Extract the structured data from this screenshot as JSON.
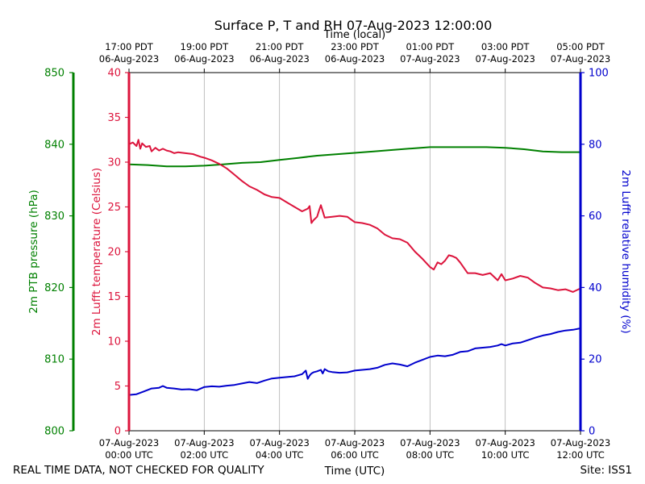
{
  "chart_data": {
    "type": "line",
    "title": "Surface P, T and RH 07-Aug-2023 12:00:00",
    "top_axis_label": "Time (local)",
    "xlabel": "Time (UTC)",
    "footer_left": "REAL TIME DATA, NOT CHECKED FOR QUALITY",
    "footer_right": "Site: ISS1",
    "x_range_hours": [
      0,
      12
    ],
    "x_ticks": [
      {
        "h": 0,
        "utc1": "07-Aug-2023",
        "utc2": "00:00 UTC",
        "loc1": "17:00 PDT",
        "loc2": "06-Aug-2023"
      },
      {
        "h": 2,
        "utc1": "07-Aug-2023",
        "utc2": "02:00 UTC",
        "loc1": "19:00 PDT",
        "loc2": "06-Aug-2023"
      },
      {
        "h": 4,
        "utc1": "07-Aug-2023",
        "utc2": "04:00 UTC",
        "loc1": "21:00 PDT",
        "loc2": "06-Aug-2023"
      },
      {
        "h": 6,
        "utc1": "07-Aug-2023",
        "utc2": "06:00 UTC",
        "loc1": "23:00 PDT",
        "loc2": "06-Aug-2023"
      },
      {
        "h": 8,
        "utc1": "07-Aug-2023",
        "utc2": "08:00 UTC",
        "loc1": "01:00 PDT",
        "loc2": "07-Aug-2023"
      },
      {
        "h": 10,
        "utc1": "07-Aug-2023",
        "utc2": "10:00 UTC",
        "loc1": "03:00 PDT",
        "loc2": "07-Aug-2023"
      },
      {
        "h": 12,
        "utc1": "07-Aug-2023",
        "utc2": "12:00 UTC",
        "loc1": "05:00 PDT",
        "loc2": "07-Aug-2023"
      }
    ],
    "pressure_axis": {
      "label": "2m PTB pressure (hPa)",
      "color": "#008000",
      "ylim": [
        800,
        850
      ],
      "ticks": [
        800,
        810,
        820,
        830,
        840,
        850
      ]
    },
    "temp_axis": {
      "label": "2m Lufft temperature (Celsius)",
      "color": "#dc143c",
      "ylim": [
        0,
        40
      ],
      "ticks": [
        0,
        5,
        10,
        15,
        20,
        25,
        30,
        35,
        40
      ]
    },
    "rh_axis": {
      "label": "2m Lufft relative humidity (%)",
      "color": "#0000cd",
      "ylim": [
        0,
        100
      ],
      "ticks": [
        0,
        20,
        40,
        60,
        80,
        100
      ]
    },
    "series": [
      {
        "name": "Pressure",
        "axis": "pressure",
        "color": "#008000",
        "x": [
          0,
          0.5,
          1,
          1.5,
          2,
          2.5,
          3,
          3.5,
          4,
          4.5,
          5,
          5.5,
          6,
          6.5,
          7,
          7.5,
          8,
          8.5,
          9,
          9.5,
          10,
          10.5,
          11,
          11.5,
          12
        ],
        "y": [
          837.2,
          837.1,
          836.9,
          836.9,
          837.0,
          837.2,
          837.4,
          837.5,
          837.8,
          838.1,
          838.4,
          838.6,
          838.8,
          839.0,
          839.2,
          839.4,
          839.6,
          839.6,
          839.6,
          839.6,
          839.5,
          839.3,
          839.0,
          838.9,
          838.9
        ]
      },
      {
        "name": "Temperature",
        "axis": "temperature",
        "color": "#dc143c",
        "x": [
          0,
          0.1,
          0.2,
          0.25,
          0.3,
          0.35,
          0.45,
          0.55,
          0.6,
          0.7,
          0.8,
          0.9,
          1.0,
          1.1,
          1.2,
          1.3,
          1.5,
          1.7,
          1.9,
          2.0,
          2.2,
          2.4,
          2.6,
          2.8,
          3.0,
          3.2,
          3.4,
          3.6,
          3.8,
          4.0,
          4.2,
          4.4,
          4.6,
          4.75,
          4.8,
          4.85,
          4.9,
          5.0,
          5.05,
          5.1,
          5.2,
          5.4,
          5.6,
          5.8,
          6.0,
          6.2,
          6.4,
          6.6,
          6.8,
          7.0,
          7.2,
          7.4,
          7.6,
          7.8,
          8.0,
          8.1,
          8.2,
          8.3,
          8.4,
          8.5,
          8.6,
          8.7,
          8.8,
          9.0,
          9.2,
          9.4,
          9.6,
          9.8,
          9.9,
          10.0,
          10.2,
          10.4,
          10.6,
          10.8,
          11.0,
          11.2,
          11.4,
          11.6,
          11.8,
          12.0
        ],
        "y": [
          32.0,
          32.2,
          31.8,
          32.5,
          31.5,
          32.1,
          31.7,
          31.8,
          31.2,
          31.6,
          31.3,
          31.5,
          31.3,
          31.2,
          31.0,
          31.1,
          31.0,
          30.9,
          30.6,
          30.5,
          30.2,
          29.8,
          29.3,
          28.6,
          27.9,
          27.3,
          26.9,
          26.4,
          26.1,
          26.0,
          25.5,
          25.0,
          24.5,
          24.8,
          25.1,
          23.2,
          23.5,
          23.9,
          24.6,
          25.2,
          23.8,
          23.9,
          24.0,
          23.9,
          23.3,
          23.2,
          23.0,
          22.6,
          21.9,
          21.5,
          21.4,
          21.0,
          20.0,
          19.2,
          18.3,
          18.0,
          18.8,
          18.6,
          19.0,
          19.6,
          19.5,
          19.3,
          18.8,
          17.6,
          17.6,
          17.4,
          17.6,
          16.8,
          17.5,
          16.8,
          17.0,
          17.3,
          17.1,
          16.5,
          16.0,
          15.9,
          15.7,
          15.8,
          15.5,
          15.9
        ]
      },
      {
        "name": "Relative Humidity",
        "axis": "rh",
        "color": "#0000cd",
        "x": [
          0,
          0.2,
          0.4,
          0.6,
          0.8,
          0.9,
          1.0,
          1.2,
          1.4,
          1.6,
          1.8,
          2.0,
          2.2,
          2.4,
          2.6,
          2.8,
          3.0,
          3.2,
          3.4,
          3.6,
          3.8,
          4.0,
          4.2,
          4.4,
          4.6,
          4.7,
          4.75,
          4.8,
          4.85,
          4.9,
          5.0,
          5.1,
          5.15,
          5.2,
          5.3,
          5.4,
          5.6,
          5.8,
          6.0,
          6.2,
          6.4,
          6.6,
          6.8,
          7.0,
          7.2,
          7.4,
          7.6,
          7.8,
          8.0,
          8.2,
          8.4,
          8.6,
          8.8,
          9.0,
          9.2,
          9.4,
          9.6,
          9.8,
          9.9,
          10.0,
          10.2,
          10.4,
          10.6,
          10.8,
          11.0,
          11.2,
          11.4,
          11.6,
          11.8,
          12.0
        ],
        "y": [
          10.0,
          10.2,
          11.0,
          11.8,
          12.0,
          12.5,
          12.0,
          11.8,
          11.5,
          11.6,
          11.3,
          12.2,
          12.4,
          12.3,
          12.6,
          12.8,
          13.2,
          13.6,
          13.3,
          14.0,
          14.6,
          14.8,
          15.0,
          15.2,
          15.8,
          16.8,
          14.5,
          15.4,
          16.0,
          16.3,
          16.6,
          17.0,
          16.0,
          17.2,
          16.6,
          16.4,
          16.2,
          16.3,
          16.8,
          17.0,
          17.2,
          17.6,
          18.4,
          18.8,
          18.5,
          18.0,
          19.0,
          19.8,
          20.6,
          21.0,
          20.8,
          21.2,
          22.0,
          22.2,
          23.0,
          23.2,
          23.4,
          23.8,
          24.2,
          23.8,
          24.4,
          24.6,
          25.3,
          26.0,
          26.6,
          27.0,
          27.6,
          28.0,
          28.2,
          28.6
        ]
      }
    ]
  }
}
